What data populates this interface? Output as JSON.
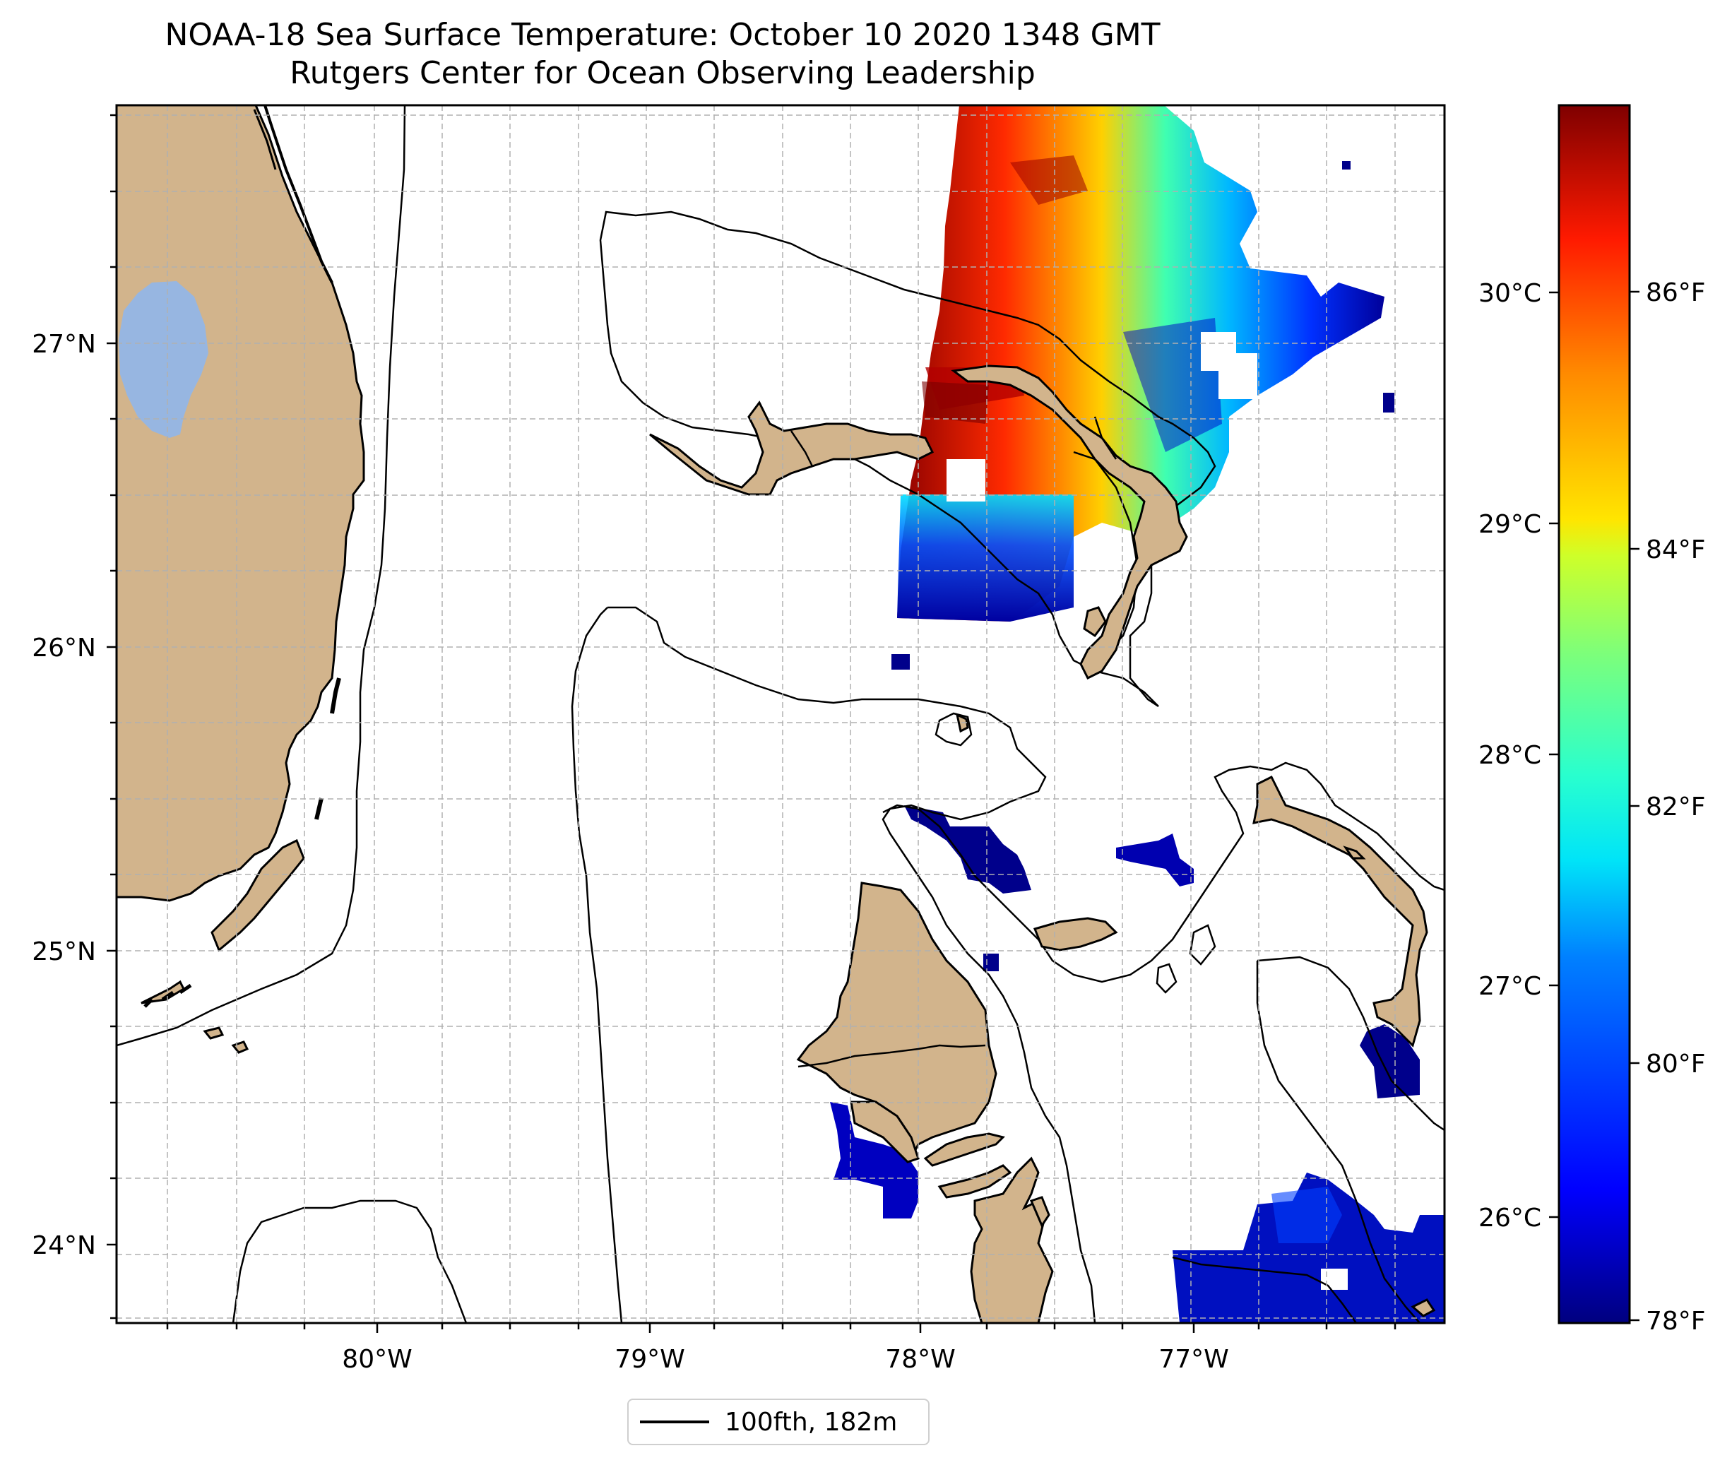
{
  "title": {
    "line1": "NOAA-18 Sea Surface Temperature: October 10 2020 1348 GMT",
    "line2": "Rutgers Center for Ocean Observing Leadership"
  },
  "axes": {
    "lon_ticks": [
      "80°W",
      "79°W",
      "78°W",
      "77°W"
    ],
    "lat_ticks": [
      "27°N",
      "26°N",
      "25°N",
      "24°N"
    ]
  },
  "colorbar": {
    "celsius_ticks": [
      "30°C",
      "29°C",
      "28°C",
      "27°C",
      "26°C"
    ],
    "fahrenheit_ticks": [
      "86°F",
      "84°F",
      "82°F",
      "80°F",
      "78°F"
    ],
    "colormap": "jet",
    "colors": [
      "#00007f",
      "#0000ff",
      "#0080ff",
      "#00e4f8",
      "#29ffce",
      "#7dff7a",
      "#ceff29",
      "#ffe500",
      "#ff8a00",
      "#ff1a00",
      "#7f0000"
    ]
  },
  "legend": {
    "label": "100fth, 182m"
  },
  "colors": {
    "land": "#d2b48c",
    "lake": "#97b6e1",
    "grid": "#b0b0b0"
  }
}
